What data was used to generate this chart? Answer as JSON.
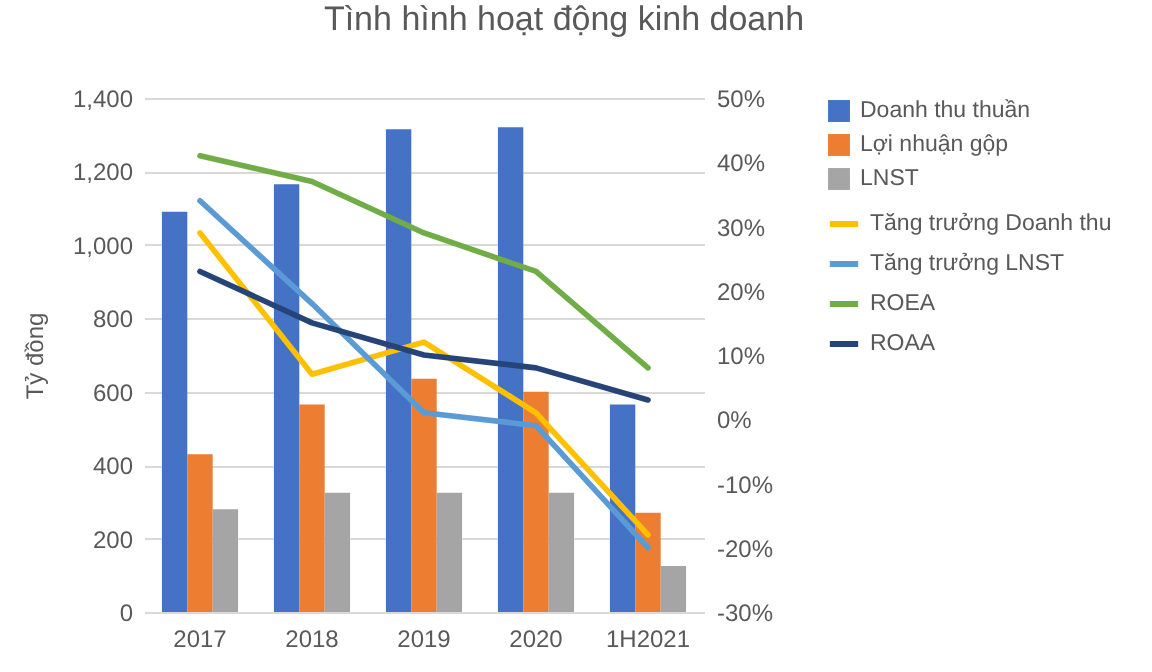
{
  "chart_data": {
    "type": "bar",
    "title": "Tình hình hoạt động kinh doanh",
    "ylabel": "Tỷ đồng",
    "categories": [
      "2017",
      "2018",
      "2019",
      "2020",
      "1H2021"
    ],
    "series": [
      {
        "name": "Doanh thu thuần",
        "color": "#4472c4",
        "values": [
          1090,
          1165,
          1315,
          1320,
          565
        ]
      },
      {
        "name": "Lợi nhuận gộp",
        "color": "#ed7d31",
        "values": [
          430,
          565,
          635,
          600,
          270
        ]
      },
      {
        "name": "LNST",
        "color": "#a5a5a5",
        "values": [
          280,
          325,
          325,
          325,
          125
        ]
      },
      {
        "name": "Tăng trưởng Doanh thu",
        "type": "line",
        "axis": "y2",
        "color": "#ffc000",
        "values": [
          29,
          7,
          12,
          1,
          -18
        ]
      },
      {
        "name": "Tăng trưởng LNST",
        "type": "line",
        "axis": "y2",
        "color": "#5b9bd5",
        "values": [
          34,
          18,
          1,
          -1,
          -20
        ]
      },
      {
        "name": "ROEA",
        "type": "line",
        "axis": "y2",
        "color": "#70ad47",
        "values": [
          41,
          37,
          29,
          23,
          8
        ]
      },
      {
        "name": "ROAA",
        "type": "line",
        "axis": "y2",
        "color": "#264478",
        "values": [
          23,
          15,
          10,
          8,
          3
        ]
      }
    ],
    "ylim": [
      0,
      1400
    ],
    "yticks": [
      {
        "value": 0,
        "label": "0"
      },
      {
        "value": 200,
        "label": "200"
      },
      {
        "value": 400,
        "label": "400"
      },
      {
        "value": 600,
        "label": "600"
      },
      {
        "value": 800,
        "label": "800"
      },
      {
        "value": 1000,
        "label": "1,000"
      },
      {
        "value": 1200,
        "label": "1,200"
      },
      {
        "value": 1400,
        "label": "1,400"
      }
    ],
    "y2lim": [
      -30,
      50
    ],
    "y2ticks": [
      {
        "value": -30,
        "label": "-30%"
      },
      {
        "value": -20,
        "label": "-20%"
      },
      {
        "value": -10,
        "label": "-10%"
      },
      {
        "value": 0,
        "label": "0%"
      },
      {
        "value": 10,
        "label": "10%"
      },
      {
        "value": 20,
        "label": "20%"
      },
      {
        "value": 30,
        "label": "30%"
      },
      {
        "value": 40,
        "label": "40%"
      },
      {
        "value": 50,
        "label": "50%"
      }
    ],
    "grid": "y",
    "legend": "right",
    "line_style": "solid"
  }
}
